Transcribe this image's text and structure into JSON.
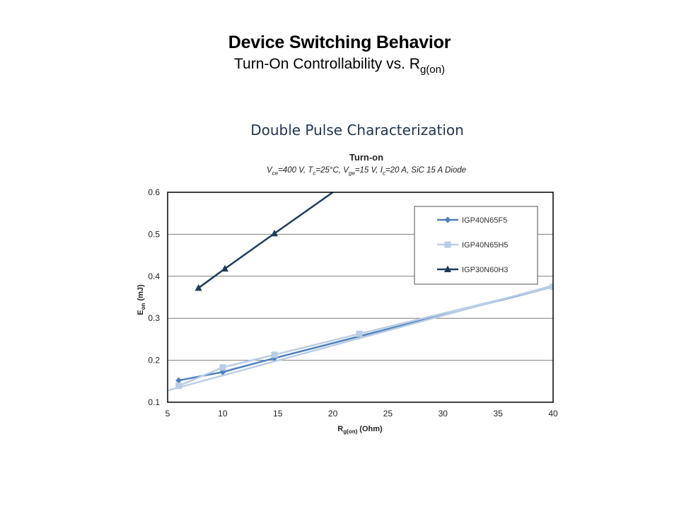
{
  "slide": {
    "title": "Device Switching Behavior",
    "subtitle_main": "Turn-On Controllability vs. R",
    "subtitle_sub": "g(on)",
    "section_title": "Double Pulse Characterization"
  },
  "chart_data": {
    "type": "line",
    "title": "Turn-on",
    "conditions": {
      "v_label": "V",
      "v_sub": "ce",
      "v_val": "=400 V, ",
      "t_label": "T",
      "t_sub": "c",
      "t_val": "=25°C, ",
      "vge_label": "V",
      "vge_sub": "ge",
      "vge_val": "=15 V, ",
      "i_label": "I",
      "i_sub": "c",
      "i_val": "=20 A, SiC 15 A Diode"
    },
    "xlabel_main": "R",
    "xlabel_sub": "g(on)",
    "xlabel_unit": " (Ohm)",
    "ylabel_main": "E",
    "ylabel_sub": "on",
    "ylabel_unit": " (mJ)",
    "xlim": [
      5,
      40
    ],
    "ylim": [
      0.1,
      0.6
    ],
    "xticks": [
      5,
      10,
      15,
      20,
      25,
      30,
      35,
      40
    ],
    "yticks": [
      0.1,
      0.2,
      0.3,
      0.4,
      0.5,
      0.6
    ],
    "grid": "horizontal",
    "legend_position": "top-right",
    "series": [
      {
        "name": "IGP40N65F5",
        "color": "#4f81bd",
        "marker": "diamond",
        "x": [
          6,
          10,
          14.7,
          22.4,
          40
        ],
        "y": [
          0.152,
          0.172,
          0.205,
          0.257,
          0.375
        ]
      },
      {
        "name": "IGP40N65H5",
        "color": "#b9cde5",
        "marker": "square",
        "x": [
          6,
          10,
          14.7,
          22.4,
          40
        ],
        "y": [
          0.139,
          0.183,
          0.213,
          0.263,
          0.375
        ],
        "trend": {
          "x": [
            5,
            40
          ],
          "y": [
            0.128,
            0.378
          ]
        }
      },
      {
        "name": "IGP30N60H3",
        "color": "#1f3a5a",
        "marker": "triangle",
        "x": [
          7.8,
          10.2,
          14.7,
          20
        ],
        "y": [
          0.372,
          0.418,
          0.502,
          0.6
        ]
      }
    ]
  }
}
